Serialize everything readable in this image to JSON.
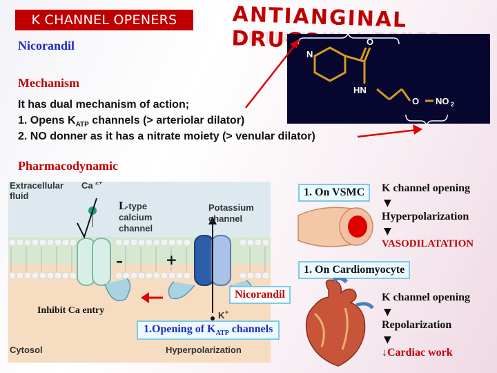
{
  "slide": {
    "tag_title": "K CHANNEL OPENERS",
    "main_title": "ANTIANGINAL DRUGS",
    "drug_name": "Nicorandil",
    "mechanism_heading": "Mechanism",
    "mechanism_lines": [
      "It has dual mechanism of action;",
      "1. Opens K",
      "ATP",
      " channels (> arteriolar dilator)",
      "2. NO donner as it has a nitrate moiety (> venular dilator)"
    ],
    "pharmacodynamic_heading": "Pharmacodynamic"
  },
  "structure": {
    "atoms": [
      "N",
      "O",
      "HN",
      "O",
      "NO",
      "2"
    ]
  },
  "membrane_diagram": {
    "extracellular_label": "Extracellular",
    "extracellular_label2": "fluid",
    "ca_label": "Ca",
    "ca_charge": "2+",
    "l_type_label": "L",
    "l_type_rest": "-type",
    "l_type_line2": "calcium",
    "l_type_line3": "channel",
    "potassium_label": "Potassium",
    "potassium_line2": "channel",
    "minus_sign": "–",
    "plus_sign": "+",
    "k_label": "K",
    "k_charge": "+",
    "cytosol_label": "Cytosol",
    "hyperpolarization_label": "Hyperpolarization",
    "inhibit_label": "Inhibit Ca entry",
    "nicorandil_box": "Nicorandil",
    "katp_box_prefix": "1.Opening of K",
    "katp_box_sub": "ATP",
    "katp_box_suffix": " channels"
  },
  "vsmc": {
    "label": "1. On VSMC",
    "steps": [
      "K channel opening",
      "Hyperpolarization",
      "VASODILATATION"
    ],
    "arrow": "🡣"
  },
  "cardio": {
    "label": "1. On Cardiomyocyte",
    "steps": [
      "K channel opening",
      "Repolarization",
      "Cardiac work"
    ],
    "arrow": "🡣"
  },
  "colors": {
    "accent_red": "#c00000",
    "accent_blue": "#1f2bbf",
    "box_border": "#7ec8e8"
  }
}
